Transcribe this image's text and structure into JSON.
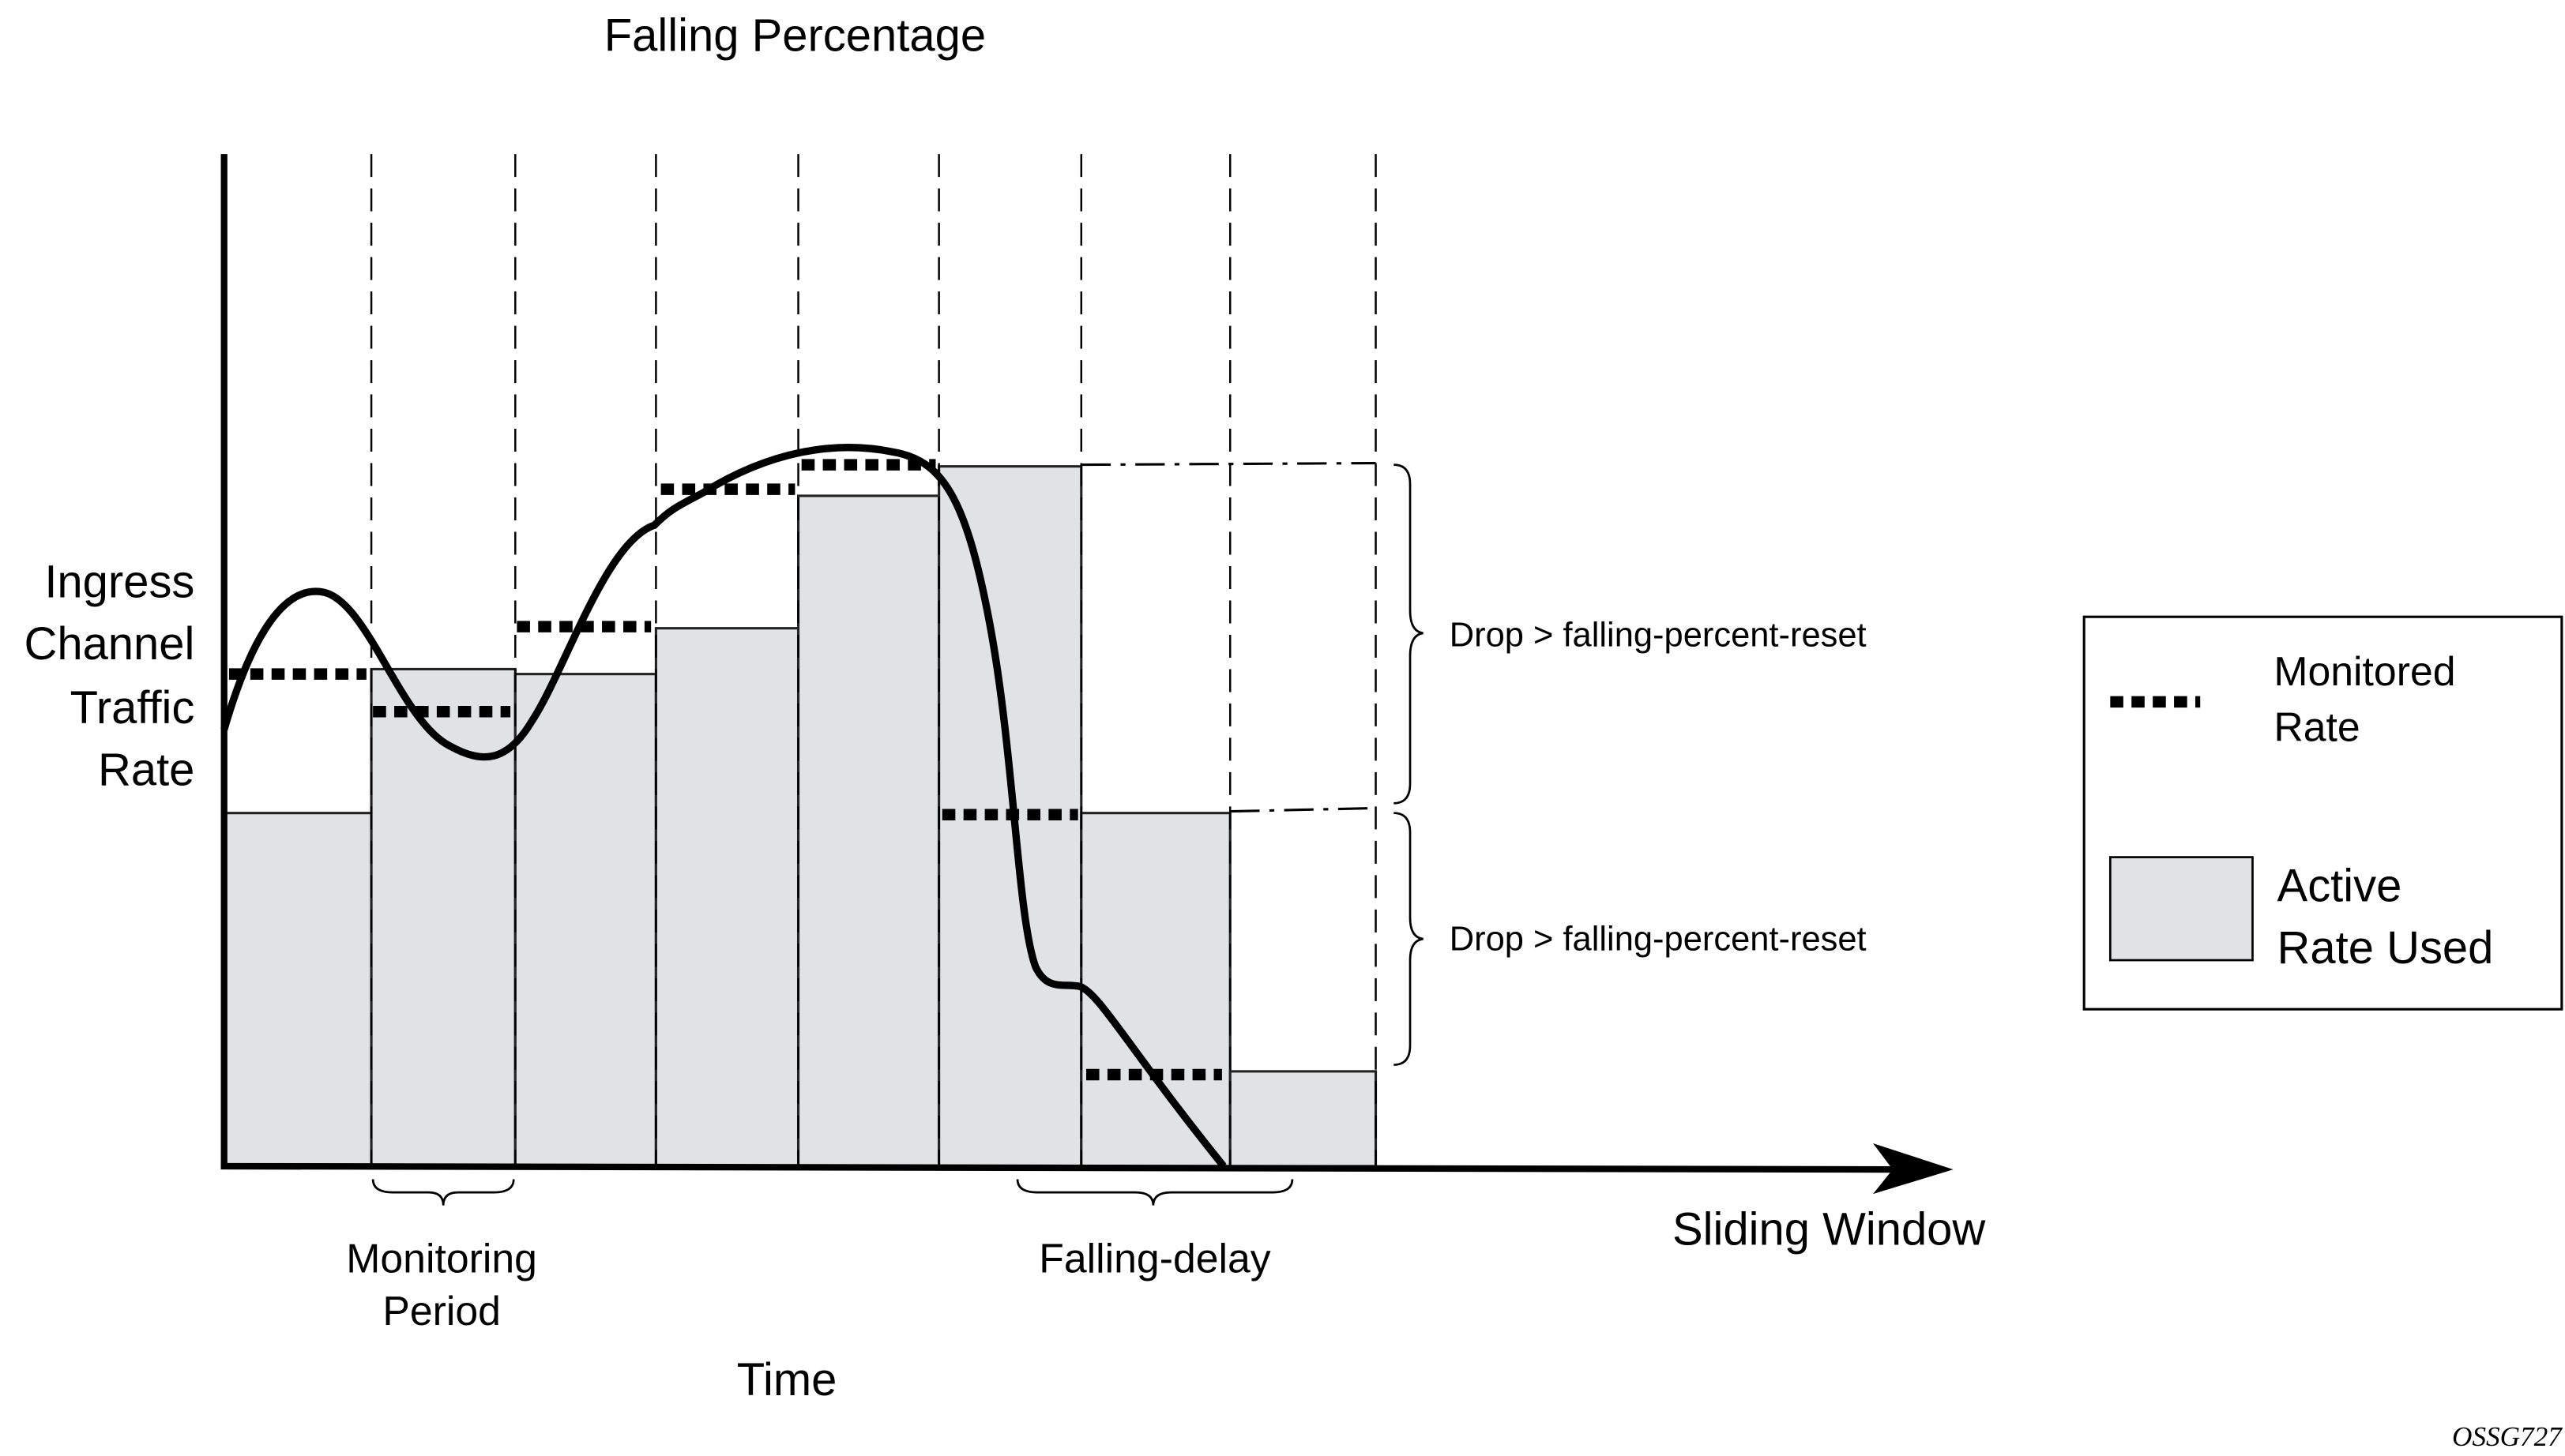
{
  "title": "Falling Percentage",
  "y_axis_label": [
    "Ingress",
    "Channel",
    "Traffic",
    "Rate"
  ],
  "x_axis_label": "Sliding Window",
  "time_label": "Time",
  "monitoring_period_label": [
    "Monitoring",
    "Period"
  ],
  "falling_delay_label": "Falling-delay",
  "drop_labels": [
    "Drop > falling-percent-reset",
    "Drop > falling-percent-reset"
  ],
  "legend": {
    "monitored_rate": [
      "Monitored",
      "Rate"
    ],
    "active_rate_used": [
      "Active",
      "Rate Used"
    ]
  },
  "figure_id": "OSSG727",
  "colors": {
    "bar_fill": "#e1e2e4",
    "line": "#000000",
    "background": "#ffffff"
  }
}
